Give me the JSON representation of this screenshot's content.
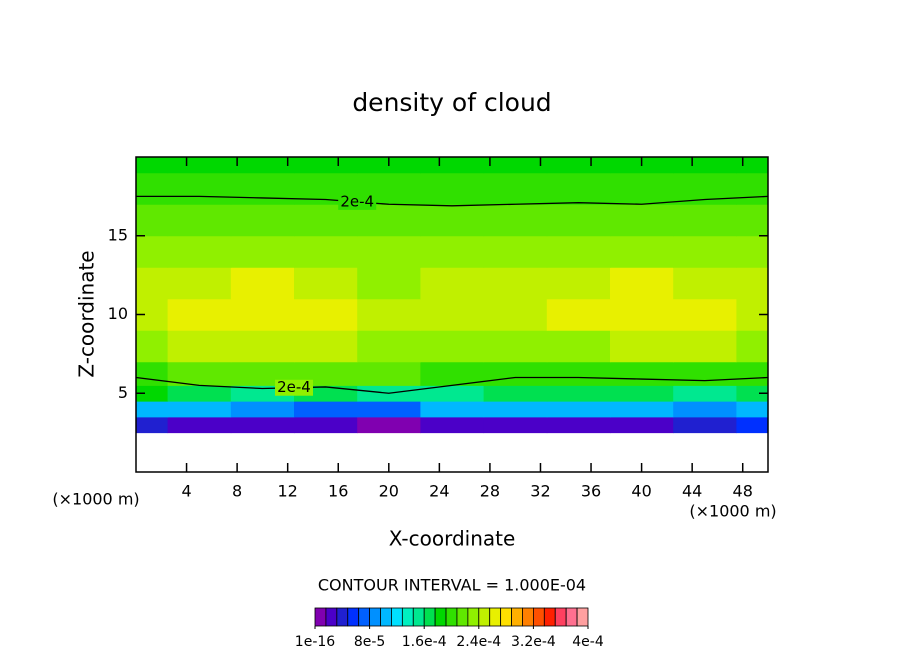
{
  "chart_data": {
    "type": "contour",
    "title": "density of cloud",
    "xlabel": "X-coordinate",
    "ylabel": "Z-coordinate",
    "xunit": "(×1000 m)",
    "annotation": "CONTOUR INTERVAL = 1.000E-04",
    "xlim": [
      0,
      50
    ],
    "ylim": [
      0,
      20
    ],
    "xticks": [
      4,
      8,
      12,
      16,
      20,
      24,
      28,
      32,
      36,
      40,
      44,
      48
    ],
    "yticks": [
      5,
      10,
      15
    ],
    "x": [
      0,
      5,
      10,
      15,
      20,
      25,
      30,
      35,
      40,
      45,
      50
    ],
    "z": [
      2,
      3,
      4,
      5,
      6,
      8,
      10,
      12,
      14,
      16,
      18,
      20
    ],
    "field": [
      [
        null,
        null,
        null,
        null,
        null,
        null,
        null,
        null,
        null,
        null,
        null
      ],
      [
        4e-05,
        3e-05,
        3e-05,
        2e-05,
        1e-05,
        3e-05,
        3e-05,
        3e-05,
        3e-05,
        4e-05,
        5e-05
      ],
      [
        0.00011,
        0.0001,
        9e-05,
        8e-05,
        7e-05,
        0.0001,
        0.00011,
        0.00011,
        0.0001,
        9e-05,
        0.0001
      ],
      [
        0.00018,
        0.00017,
        0.00016,
        0.00017,
        0.00016,
        0.00016,
        0.00017,
        0.00017,
        0.00017,
        0.00016,
        0.00017
      ],
      [
        0.000205,
        0.00021,
        0.00021,
        0.000215,
        0.00021,
        0.000195,
        0.000195,
        0.000195,
        0.000195,
        0.0002,
        0.000205
      ],
      [
        0.00024,
        0.00025,
        0.00025,
        0.00025,
        0.00024,
        0.00023,
        0.00024,
        0.00024,
        0.00025,
        0.00025,
        0.00024
      ],
      [
        0.00025,
        0.000265,
        0.00027,
        0.00026,
        0.00025,
        0.00025,
        0.000255,
        0.00026,
        0.000265,
        0.000265,
        0.00025
      ],
      [
        0.000245,
        0.000255,
        0.00026,
        0.00025,
        0.00024,
        0.00025,
        0.00025,
        0.000255,
        0.00026,
        0.000255,
        0.000245
      ],
      [
        0.00023,
        0.000235,
        0.00024,
        0.000235,
        0.00023,
        0.00023,
        0.00023,
        0.000235,
        0.00024,
        0.000235,
        0.00023
      ],
      [
        0.00021,
        0.000215,
        0.000215,
        0.000215,
        0.00021,
        0.00021,
        0.00021,
        0.000215,
        0.000215,
        0.000215,
        0.00021
      ],
      [
        0.000195,
        0.000195,
        0.000195,
        0.000197,
        0.000198,
        0.000198,
        0.000198,
        0.000198,
        0.000196,
        0.000195,
        0.000195
      ],
      [
        0.000185,
        0.000185,
        0.000185,
        0.000186,
        0.000187,
        0.000187,
        0.000187,
        0.000186,
        0.000185,
        0.000185,
        0.000185
      ]
    ],
    "contours": [
      {
        "label": "2e-4",
        "x": [
          0,
          5,
          10,
          15,
          20,
          25,
          30,
          35,
          40,
          45,
          50
        ],
        "z": [
          17.5,
          17.5,
          17.4,
          17.3,
          17.0,
          16.9,
          17.0,
          17.1,
          17.0,
          17.3,
          17.5
        ]
      },
      {
        "label": "2e-4",
        "x": [
          0,
          5,
          10,
          15,
          20,
          25,
          30,
          35,
          40,
          45,
          50
        ],
        "z": [
          6.0,
          5.5,
          5.3,
          5.4,
          5.0,
          5.5,
          6.0,
          6.0,
          5.9,
          5.8,
          6.0
        ]
      }
    ],
    "colorbar": {
      "ticks": [
        {
          "value": 1e-16,
          "label": "1e-16"
        },
        {
          "value": 8e-05,
          "label": "8e-5"
        },
        {
          "value": 0.00016,
          "label": "1.6e-4"
        },
        {
          "value": 0.00024,
          "label": "2.4e-4"
        },
        {
          "value": 0.00032,
          "label": "3.2e-4"
        },
        {
          "value": 0.0004,
          "label": "4e-4"
        }
      ],
      "colors": [
        "#8000b0",
        "#4b00c8",
        "#2020d0",
        "#0030ff",
        "#0060ff",
        "#0090ff",
        "#00b8ff",
        "#00e0ff",
        "#00f0c0",
        "#00e890",
        "#00e050",
        "#00d800",
        "#30e000",
        "#60e800",
        "#90f000",
        "#c0f000",
        "#e8f000",
        "#ffe000",
        "#ffb000",
        "#ff8000",
        "#ff5000",
        "#ff2000",
        "#ff4060",
        "#ff7090",
        "#ffa0a0"
      ]
    }
  }
}
